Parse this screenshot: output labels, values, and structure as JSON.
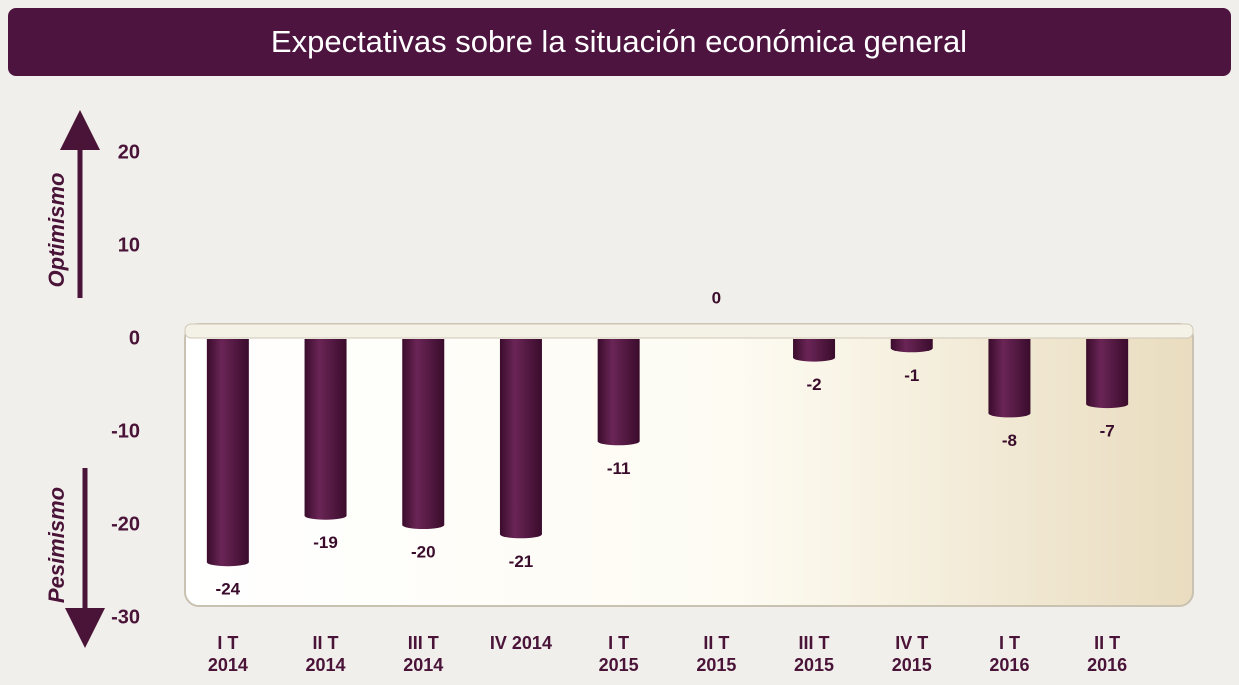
{
  "chart_data": {
    "type": "bar",
    "title": "Expectativas sobre la situación económica general",
    "y_annotations": [
      "Optimismo",
      "Pesimismo"
    ],
    "categories": [
      "I T\n2014",
      "II T\n2014",
      "III T\n2014",
      "IV 2014",
      "I T\n2015",
      "II T\n2015",
      "III T\n2015",
      "IV T\n2015",
      "I T\n2016",
      "II T\n2016"
    ],
    "values": [
      -24,
      -19,
      -20,
      -21,
      -11,
      0,
      -2,
      -1,
      -8,
      -7
    ],
    "color": "#4a1338",
    "ylim": [
      -30,
      20
    ],
    "yticks": [
      -30,
      -20,
      -10,
      0,
      10,
      20
    ],
    "grid": false
  }
}
